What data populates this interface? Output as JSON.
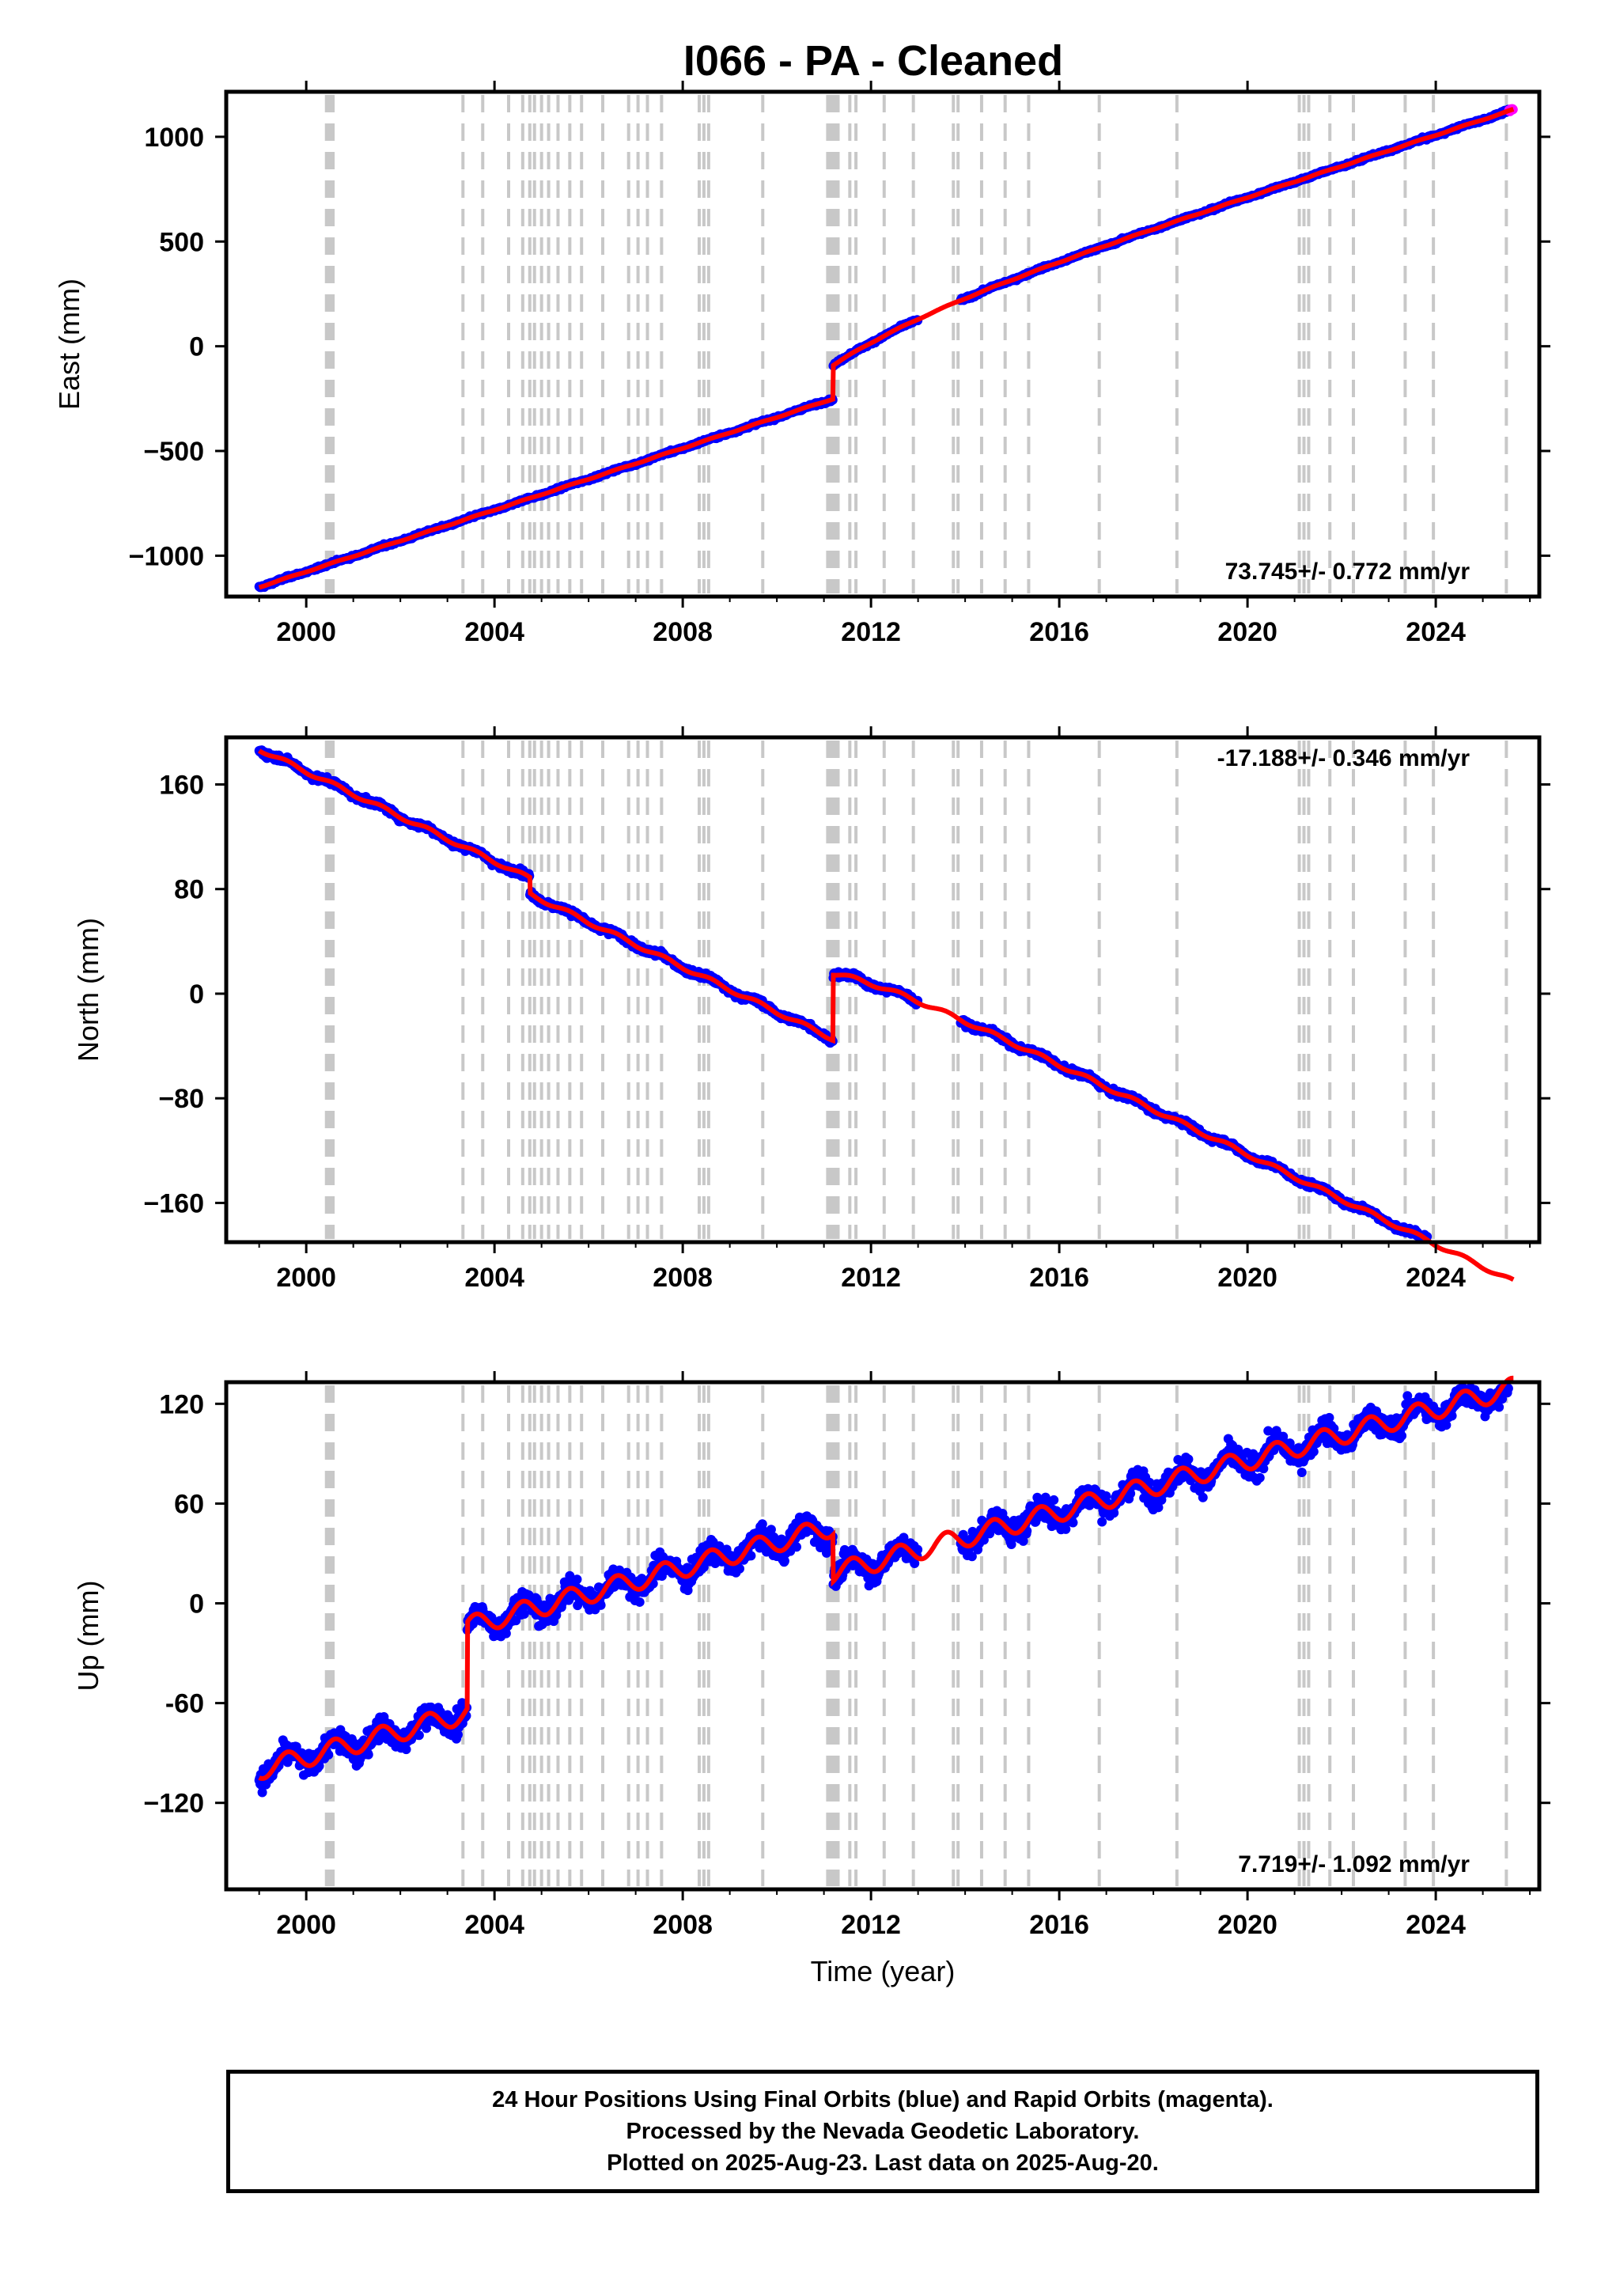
{
  "title": "I066  - PA - Cleaned",
  "colors": {
    "final": "#0000ff",
    "rapid": "#ff00ff",
    "model": "#ff0000",
    "steps": "#c8c8c8",
    "frame": "#000000"
  },
  "chart_data": [
    {
      "type": "scatter",
      "name": "east",
      "ylabel": "East (mm)",
      "xlabel": "",
      "xlim": [
        1998.3,
        2026.2
      ],
      "ylim": [
        -1195,
        1215
      ],
      "xticks": [
        2000,
        2004,
        2008,
        2012,
        2016,
        2020,
        2024
      ],
      "yticks": [
        -1000,
        -500,
        0,
        500,
        1000
      ],
      "ytick_labels": [
        "−1000",
        "−500",
        "0",
        "500",
        "1000"
      ],
      "rate_label": "73.745+/- 0.772 mm/yr",
      "rate_position": "bottom-right",
      "model": {
        "base": -1150,
        "rate": 73.745,
        "start": 1999.0,
        "end": 2025.65,
        "steps": [
          {
            "t": 2011.19,
            "dy": 160
          }
        ],
        "post_decay": {
          "t": 2011.19,
          "amp": 155,
          "tau": 2.2
        },
        "season_amp": 2
      },
      "scatter_noise": 8,
      "gap": [
        2013.0,
        2013.9
      ],
      "rapid_start": 2025.55
    },
    {
      "type": "scatter",
      "name": "north",
      "ylabel": "North (mm)",
      "xlabel": "",
      "xlim": [
        1998.3,
        2026.2
      ],
      "ylim": [
        -190,
        196
      ],
      "xticks": [
        2000,
        2004,
        2008,
        2012,
        2016,
        2020,
        2024
      ],
      "yticks": [
        -160,
        -80,
        0,
        80,
        160
      ],
      "ytick_labels": [
        "−160",
        "−80",
        "0",
        "80",
        "160"
      ],
      "rate_label": "-17.188+/- 0.346 mm/yr",
      "rate_position": "top-right",
      "model": {
        "base": 187,
        "rate": -17.188,
        "start": 1999.0,
        "end": 2025.65,
        "steps": [
          {
            "t": 2004.75,
            "dy": -12
          },
          {
            "t": 2011.19,
            "dy": 50
          }
        ],
        "post_decay": {
          "t": 2011.19,
          "amp": 13,
          "tau": 1.3
        },
        "season_amp": 1.5
      },
      "scatter_noise": 3,
      "gap": [
        2013.0,
        2013.9
      ],
      "rapid_start": 2025.55
    },
    {
      "type": "scatter",
      "name": "up",
      "ylabel": "Up (mm)",
      "xlabel": "Time (year)",
      "xlim": [
        1998.3,
        2026.2
      ],
      "ylim": [
        -172,
        133
      ],
      "xticks": [
        2000,
        2004,
        2008,
        2012,
        2016,
        2020,
        2024
      ],
      "yticks": [
        -120,
        -60,
        0,
        60,
        120
      ],
      "ytick_labels": [
        "−120",
        "-60",
        "0",
        "60",
        "120"
      ],
      "rate_label": "7.719+/- 1.092 mm/yr",
      "rate_position": "bottom-right",
      "model": {
        "base": -100,
        "rate": 7.719,
        "start": 1999.0,
        "end": 2025.65,
        "steps": [
          {
            "t": 2003.42,
            "dy": 52
          },
          {
            "t": 2011.19,
            "dy": -28
          }
        ],
        "post_decay": {
          "t": 2011.19,
          "amp": 0,
          "tau": 1.0
        },
        "season_amp": 6
      },
      "scatter_noise": 9,
      "gap": [
        2013.0,
        2013.9
      ],
      "rapid_start": 2025.55
    }
  ],
  "step_lines": [
    2000.43,
    2000.47,
    2000.5,
    2000.53,
    2000.57,
    2003.33,
    2003.75,
    2004.3,
    2004.6,
    2004.75,
    2004.85,
    2005.0,
    2005.15,
    2005.35,
    2005.6,
    2005.85,
    2006.3,
    2006.85,
    2007.05,
    2007.25,
    2007.55,
    2008.35,
    2008.45,
    2008.55,
    2009.7,
    2011.08,
    2011.14,
    2011.19,
    2011.24,
    2011.3,
    2011.55,
    2011.68,
    2012.28,
    2012.9,
    2013.75,
    2013.85,
    2014.35,
    2014.85,
    2015.35,
    2016.85,
    2018.5,
    2021.1,
    2021.2,
    2021.3,
    2021.75,
    2022.25,
    2023.35,
    2023.95,
    2025.5
  ],
  "footer": {
    "line1": "24 Hour Positions Using Final Orbits (blue) and Rapid Orbits (magenta).",
    "line2": "Processed by the Nevada Geodetic Laboratory.",
    "line3": "Plotted on 2025-Aug-23. Last data on 2025-Aug-20."
  }
}
